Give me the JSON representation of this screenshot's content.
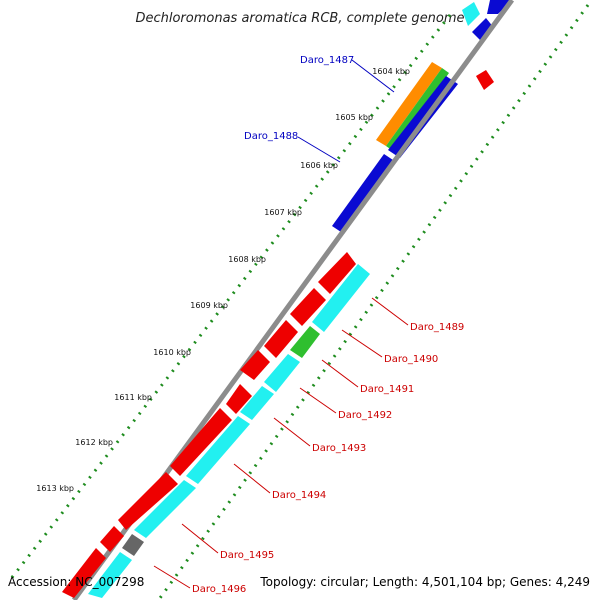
{
  "title": "Dechloromonas aromatica RCB, complete genome",
  "accession": "Accession: NC_007298",
  "summary": "Topology: circular; Length: 4,501,104 bp; Genes: 4,249",
  "colors": {
    "backbone": "#8c8c8c",
    "cds_plus": "#0a0ad2",
    "cds_minus_red": "#ee0000",
    "cds_minus_cyan": "#22f0f0",
    "gc_skew": "#1e8c1e",
    "orange": "#ff8c00",
    "green": "#2fbf2f",
    "gray": "#666666",
    "label_plus": "#0000c0",
    "label_minus": "#cc0000"
  },
  "ticks": [
    "1604 kbp",
    "1605 kbp",
    "1606 kbp",
    "1607 kbp",
    "1608 kbp",
    "1609 kbp",
    "1610 kbp",
    "1611 kbp",
    "1612 kbp",
    "1613 kbp"
  ],
  "labels_top": [
    "Daro_1487",
    "Daro_1488"
  ],
  "labels_bottom": [
    "Daro_1489",
    "Daro_1490",
    "Daro_1491",
    "Daro_1492",
    "Daro_1493",
    "Daro_1494",
    "Daro_1495",
    "Daro_1496"
  ]
}
